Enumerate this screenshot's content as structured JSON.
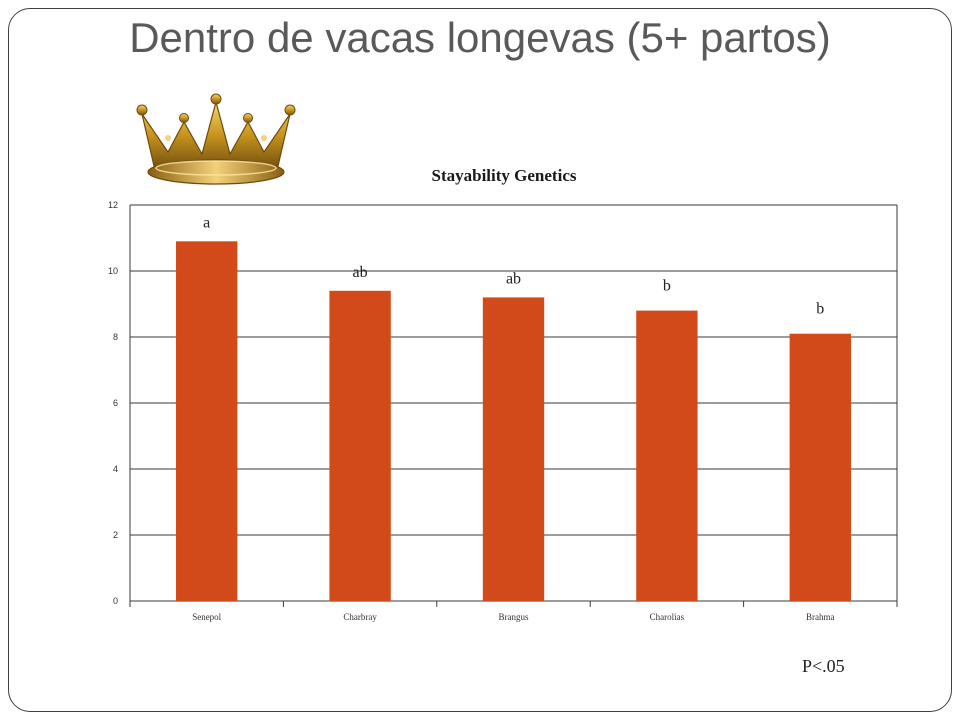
{
  "slide": {
    "title": "Dentro de vacas longevas (5+ partos)",
    "footnote": "P<.05",
    "image": "gold-crown"
  },
  "colors": {
    "bar": "#d24a1a",
    "frame": "#3f3f3f",
    "title": "#595959"
  },
  "chart_data": {
    "type": "bar",
    "title": "Stayability Genetics",
    "xlabel": "",
    "ylabel": "",
    "categories": [
      "Senepol",
      "Charbray",
      "Brangus",
      "Charolias",
      "Brahma"
    ],
    "values": [
      10.9,
      9.4,
      9.2,
      8.8,
      8.1
    ],
    "significance_labels": [
      "a",
      "ab",
      "ab",
      "b",
      "b"
    ],
    "ylim": [
      0,
      12
    ],
    "yticks": [
      0,
      2,
      4,
      6,
      8,
      10,
      12
    ],
    "grid": true,
    "legend": "none"
  }
}
